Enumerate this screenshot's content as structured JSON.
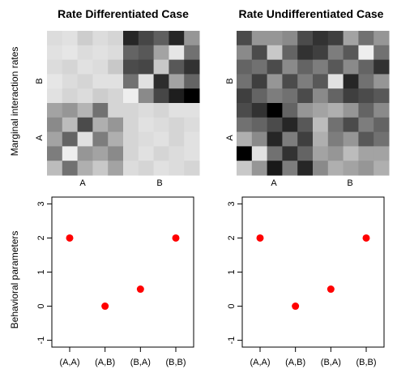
{
  "chart_data": [
    {
      "type": "heatmap",
      "title": "Rate Differentiated Case",
      "ylabel": "Marginal interaction rates",
      "x_tick_labels": [
        "A",
        "B"
      ],
      "y_tick_labels": [
        "A",
        "B"
      ],
      "colorscale": "grayscale, darker = higher",
      "grid": [
        [
          0.12,
          0.1,
          0.18,
          0.12,
          0.15,
          0.85,
          0.72,
          0.62,
          0.85,
          0.4
        ],
        [
          0.1,
          0.08,
          0.12,
          0.1,
          0.12,
          0.6,
          0.65,
          0.35,
          0.08,
          0.55
        ],
        [
          0.12,
          0.15,
          0.1,
          0.12,
          0.2,
          0.7,
          0.72,
          0.2,
          0.65,
          0.8
        ],
        [
          0.08,
          0.12,
          0.15,
          0.1,
          0.1,
          0.55,
          0.1,
          0.82,
          0.35,
          0.6
        ],
        [
          0.1,
          0.15,
          0.12,
          0.18,
          0.15,
          0.05,
          0.45,
          0.72,
          0.88,
          1.0
        ],
        [
          0.35,
          0.4,
          0.28,
          0.55,
          0.15,
          0.15,
          0.12,
          0.15,
          0.1,
          0.1
        ],
        [
          0.45,
          0.25,
          0.7,
          0.3,
          0.4,
          0.15,
          0.1,
          0.12,
          0.15,
          0.12
        ],
        [
          0.35,
          0.6,
          0.1,
          0.5,
          0.3,
          0.15,
          0.12,
          0.1,
          0.15,
          0.1
        ],
        [
          0.5,
          0.05,
          0.4,
          0.35,
          0.45,
          0.15,
          0.1,
          0.15,
          0.12,
          0.1
        ],
        [
          0.25,
          0.55,
          0.3,
          0.2,
          0.35,
          0.12,
          0.15,
          0.1,
          0.12,
          0.15
        ]
      ]
    },
    {
      "type": "heatmap",
      "title": "Rate Undifferentiated Case",
      "x_tick_labels": [
        "A",
        "B"
      ],
      "y_tick_labels": [
        "A",
        "B"
      ],
      "colorscale": "grayscale, darker = higher",
      "grid": [
        [
          0.7,
          0.4,
          0.4,
          0.45,
          0.7,
          0.8,
          0.75,
          0.35,
          0.55,
          0.4
        ],
        [
          0.45,
          0.7,
          0.2,
          0.6,
          0.8,
          0.75,
          0.5,
          0.65,
          0.05,
          0.55
        ],
        [
          0.6,
          0.55,
          0.7,
          0.45,
          0.6,
          0.5,
          0.65,
          0.45,
          0.6,
          0.8
        ],
        [
          0.55,
          0.75,
          0.4,
          0.7,
          0.5,
          0.65,
          0.1,
          0.85,
          0.55,
          0.4
        ],
        [
          0.75,
          0.6,
          0.5,
          0.55,
          0.7,
          0.45,
          0.6,
          0.75,
          0.7,
          0.65
        ],
        [
          0.7,
          0.8,
          1.0,
          0.6,
          0.4,
          0.35,
          0.3,
          0.4,
          0.6,
          0.45
        ],
        [
          0.55,
          0.6,
          0.7,
          0.85,
          0.65,
          0.25,
          0.55,
          0.7,
          0.5,
          0.6
        ],
        [
          0.3,
          0.45,
          0.85,
          0.5,
          0.75,
          0.3,
          0.5,
          0.4,
          0.65,
          0.55
        ],
        [
          1.0,
          0.1,
          0.55,
          0.8,
          0.6,
          0.35,
          0.4,
          0.25,
          0.35,
          0.35
        ],
        [
          0.2,
          0.4,
          0.9,
          0.5,
          0.85,
          0.45,
          0.3,
          0.35,
          0.4,
          0.3
        ]
      ]
    },
    {
      "type": "scatter",
      "ylabel": "Behavioral parameters",
      "categories": [
        "(A,A)",
        "(A,B)",
        "(B,A)",
        "(B,B)"
      ],
      "values": [
        2,
        0,
        0.5,
        2
      ],
      "ylim": [
        -1.2,
        3.2
      ],
      "y_ticks": [
        "-1",
        "0",
        "1",
        "2",
        "3"
      ],
      "point_color": "#ff0000"
    },
    {
      "type": "scatter",
      "categories": [
        "(A,A)",
        "(A,B)",
        "(B,A)",
        "(B,B)"
      ],
      "values": [
        2,
        0,
        0.5,
        2
      ],
      "ylim": [
        -1.2,
        3.2
      ],
      "y_ticks": [
        "-1",
        "0",
        "1",
        "2",
        "3"
      ],
      "point_color": "#ff0000"
    }
  ]
}
